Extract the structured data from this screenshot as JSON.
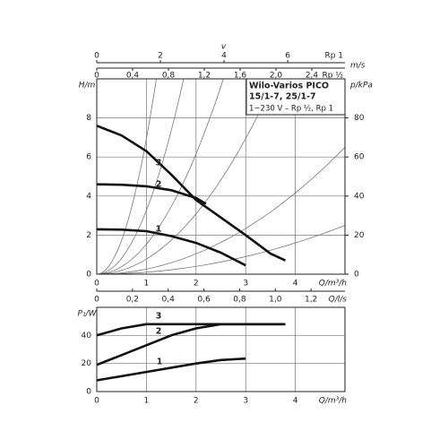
{
  "chart_data": [
    {
      "type": "line",
      "title": [
        "Wilo-Varios PICO",
        "15/1-7, 25/1-7"
      ],
      "subtitle": "1~230 V – Rp ½, Rp 1",
      "xlabel": "Q/m³/h",
      "ylabel": "H/m",
      "y2label": "p/kPa",
      "xlim": [
        0,
        5
      ],
      "xticks": [
        0,
        1,
        2,
        3,
        4
      ],
      "ylim": [
        0,
        10
      ],
      "yticks": [
        0,
        2,
        4,
        6,
        8
      ],
      "y2lim": [
        0,
        100
      ],
      "y2ticks": [
        0,
        20,
        40,
        60,
        80
      ],
      "grid": true,
      "color": "#111111",
      "extra_axes": [
        {
          "position": "top",
          "label": "v",
          "pipe": "Rp 1",
          "xlim": [
            0,
            7.8
          ],
          "xticks": [
            0,
            2,
            4,
            6
          ]
        },
        {
          "position": "top",
          "label": "m/s",
          "pipe": "Rp ½",
          "xlim": [
            0,
            2.77
          ],
          "xticks": [
            0,
            {
              "value": 0.4,
              "label": "0,4"
            },
            {
              "value": 0.8,
              "label": "0,8"
            },
            {
              "value": 1.2,
              "label": "1,2"
            },
            {
              "value": 1.6,
              "label": "1,6"
            },
            {
              "value": 2.0,
              "label": "2,0"
            },
            {
              "value": 2.4,
              "label": "2,4"
            }
          ]
        },
        {
          "position": "bottom",
          "label": "Q/l/s",
          "xlim": [
            0,
            1.39
          ],
          "xticks": [
            0,
            {
              "value": 0.2,
              "label": "0,2"
            },
            {
              "value": 0.4,
              "label": "0,4"
            },
            {
              "value": 0.6,
              "label": "0,6"
            },
            {
              "value": 0.8,
              "label": "0,8"
            },
            {
              "value": 1.0,
              "label": "1,0"
            },
            {
              "value": 1.2,
              "label": "1,2"
            }
          ]
        }
      ],
      "series": [
        {
          "name": "1",
          "color": "#111111",
          "x": [
            0,
            0.5,
            1,
            1.5,
            2,
            2.5,
            3
          ],
          "values": [
            2.3,
            2.28,
            2.2,
            1.95,
            1.6,
            1.1,
            0.45
          ]
        },
        {
          "name": "2",
          "color": "#111111",
          "x": [
            0,
            0.5,
            1,
            1.5,
            2,
            2.2
          ],
          "values": [
            4.6,
            4.58,
            4.5,
            4.3,
            3.9,
            3.6
          ]
        },
        {
          "name": "3",
          "color": "#111111",
          "x": [
            0,
            0.5,
            1,
            1.5,
            2,
            2.5,
            3,
            3.5,
            3.8
          ],
          "values": [
            7.6,
            7.1,
            6.3,
            5.1,
            3.8,
            2.9,
            2.0,
            1.05,
            0.7
          ]
        }
      ]
    },
    {
      "type": "line",
      "xlabel": "Q/m³/h",
      "ylabel": "P₁/W",
      "xlim": [
        0,
        5
      ],
      "xticks": [
        0,
        1,
        2,
        3,
        4
      ],
      "ylim": [
        0,
        60
      ],
      "yticks": [
        0,
        20,
        40
      ],
      "grid": true,
      "series": [
        {
          "name": "1",
          "color": "#111111",
          "x": [
            0,
            1,
            2,
            2.5,
            3
          ],
          "values": [
            8,
            14,
            20,
            22.5,
            23.5
          ]
        },
        {
          "name": "2",
          "color": "#111111",
          "x": [
            0,
            0.5,
            1,
            1.5,
            2,
            2.5,
            3,
            3.8
          ],
          "values": [
            19,
            26,
            33,
            40,
            45,
            48,
            48,
            48
          ]
        },
        {
          "name": "3",
          "color": "#111111",
          "x": [
            0,
            0.5,
            1,
            1.5,
            2,
            3,
            3.8
          ],
          "values": [
            40,
            45,
            48,
            48,
            48,
            48,
            48
          ]
        }
      ]
    }
  ]
}
